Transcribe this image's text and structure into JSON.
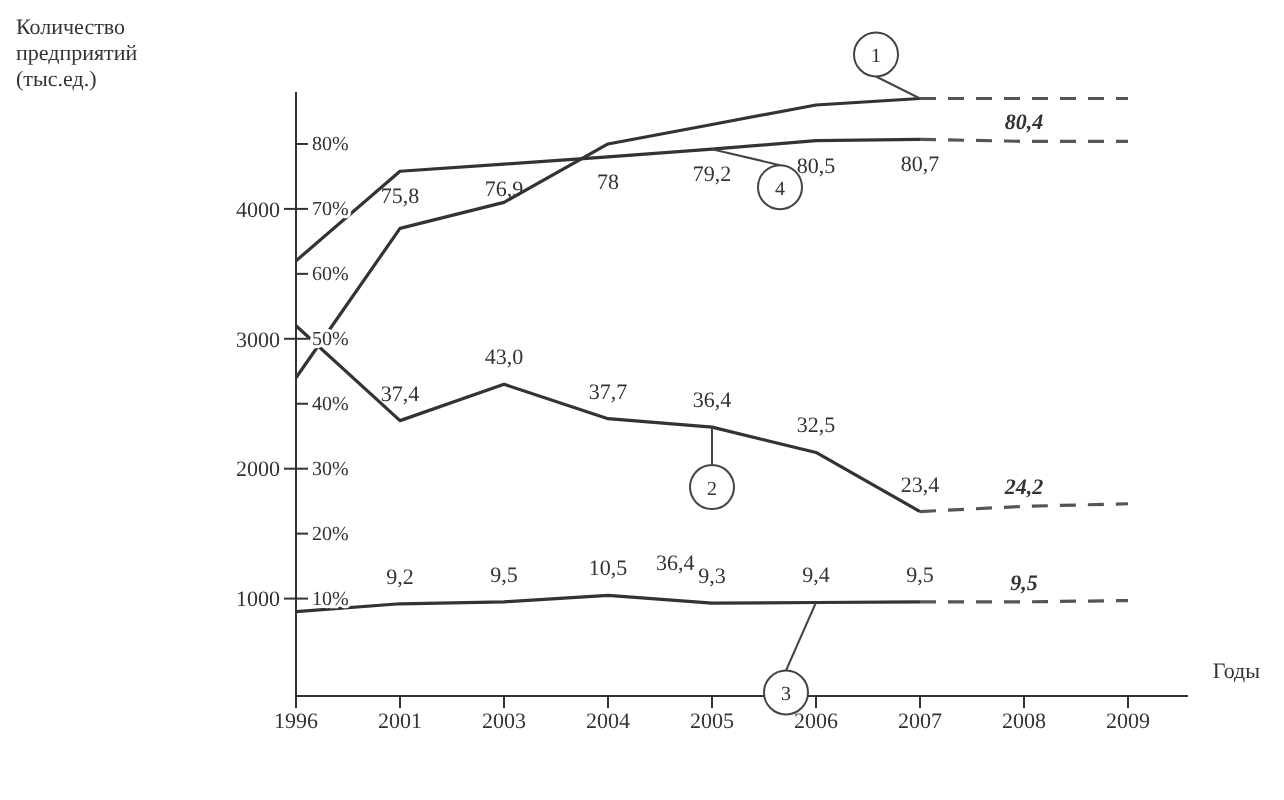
{
  "chart_data": {
    "type": "line",
    "xlabel": "Годы",
    "ylabel": "Количество предприятий (тыс.ед.)",
    "categories": [
      "1996",
      "2001",
      "2003",
      "2004",
      "2005",
      "2006",
      "2007",
      "2008",
      "2009"
    ],
    "ylim": [
      250,
      4900
    ],
    "yticks": [
      1000,
      2000,
      3000,
      4000
    ],
    "y2lim": [
      -5,
      88
    ],
    "y2ticks": [
      {
        "value": 10,
        "label": "10%"
      },
      {
        "value": 20,
        "label": "20%"
      },
      {
        "value": 30,
        "label": "30%"
      },
      {
        "value": 40,
        "label": "40%"
      },
      {
        "value": 50,
        "label": "50%"
      },
      {
        "value": 60,
        "label": "60%"
      },
      {
        "value": 70,
        "label": "70%"
      },
      {
        "value": 80,
        "label": "80%"
      }
    ],
    "marker": "none",
    "series": [
      {
        "name": "1",
        "color": "#333333",
        "line_style": "solid",
        "values": [
          2700,
          3850,
          4050,
          4500,
          4650,
          4800,
          4850,
          null,
          null
        ]
      },
      {
        "name": "2",
        "color": "#333333",
        "axis": "y2",
        "line_style": "solid",
        "values": [
          52,
          37.4,
          43.0,
          37.7,
          36.4,
          32.5,
          23.4,
          null,
          null
        ],
        "value_labels": [
          null,
          "37,4",
          "43,0",
          "37,7",
          "36,4",
          "32,5",
          "23,4",
          null,
          null
        ]
      },
      {
        "name": "3",
        "color": "#333333",
        "axis": "y2",
        "line_style": "solid",
        "values": [
          8,
          9.2,
          9.5,
          10.5,
          9.3,
          9.4,
          9.5,
          null,
          null
        ],
        "value_labels": [
          null,
          "9,2",
          "9,5",
          "10,5",
          "9,3",
          "9,4",
          "9,5",
          null,
          null
        ]
      },
      {
        "name": "4",
        "color": "#333333",
        "axis": "y2",
        "line_style": "solid",
        "values": [
          62,
          75.8,
          76.9,
          78,
          79.2,
          80.5,
          80.7,
          null,
          null
        ],
        "value_labels": [
          null,
          "75,8",
          "76,9",
          "78",
          "79,2",
          "80,5",
          "80,7",
          null,
          null
        ]
      },
      {
        "color": "#555555",
        "line_style": "dashed",
        "values": [
          null,
          null,
          null,
          null,
          null,
          null,
          4850,
          4850,
          4850
        ]
      },
      {
        "color": "#555555",
        "axis": "y2",
        "line_style": "dashed",
        "values": [
          null,
          null,
          null,
          null,
          null,
          null,
          23.4,
          24.2,
          24.6
        ],
        "value_labels": [
          null,
          null,
          null,
          null,
          null,
          null,
          null,
          "24,2",
          null
        ]
      },
      {
        "color": "#555555",
        "axis": "y2",
        "line_style": "dashed",
        "values": [
          null,
          null,
          null,
          null,
          null,
          null,
          9.5,
          9.5,
          9.7
        ],
        "value_labels": [
          null,
          null,
          null,
          null,
          null,
          null,
          null,
          "9,5",
          null
        ]
      },
      {
        "color": "#555555",
        "axis": "y2",
        "line_style": "dashed",
        "values": [
          null,
          null,
          null,
          null,
          null,
          null,
          80.7,
          80.4,
          80.4
        ],
        "value_labels": [
          null,
          null,
          null,
          null,
          null,
          null,
          null,
          "80,4",
          null
        ]
      }
    ],
    "annotations": [
      "36,4"
    ]
  }
}
